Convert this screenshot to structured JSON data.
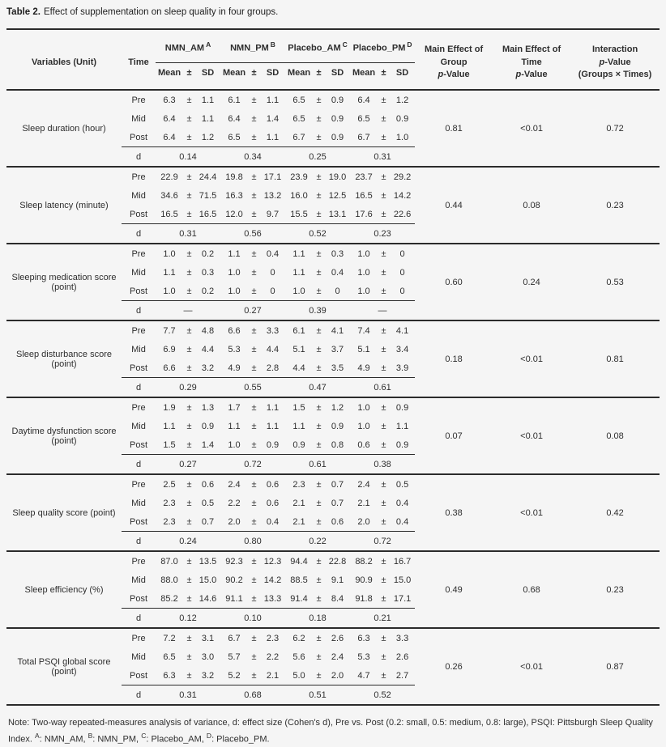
{
  "title": {
    "label": "Table 2.",
    "text": "Effect of supplementation on sleep quality in four groups."
  },
  "table": {
    "header": {
      "variables": "Variables (Unit)",
      "time": "Time",
      "groups": [
        {
          "name": "NMN_AM",
          "sup": "A"
        },
        {
          "name": "NMN_PM",
          "sup": "B"
        },
        {
          "name": "Placebo_AM",
          "sup": "C"
        },
        {
          "name": "Placebo_PM",
          "sup": "D"
        }
      ],
      "stat_cols": [
        "Mean",
        "±",
        "SD"
      ],
      "p_group_line1": "Main Effect of Group",
      "p_time_line1": "Main Effect of Time",
      "interaction_line1": "Interaction",
      "interaction_line3": "(Groups × Times)",
      "p_italic": "p",
      "p_suffix": "-Value"
    },
    "pm": "±",
    "d_label": "d",
    "blocks": [
      {
        "variable": "Sleep duration (hour)",
        "rows": [
          {
            "time": "Pre",
            "stats": [
              {
                "mean": "6.3",
                "sd": "1.1"
              },
              {
                "mean": "6.1",
                "sd": "1.1"
              },
              {
                "mean": "6.5",
                "sd": "0.9"
              },
              {
                "mean": "6.4",
                "sd": "1.2"
              }
            ]
          },
          {
            "time": "Mid",
            "stats": [
              {
                "mean": "6.4",
                "sd": "1.1"
              },
              {
                "mean": "6.4",
                "sd": "1.4"
              },
              {
                "mean": "6.5",
                "sd": "0.9"
              },
              {
                "mean": "6.5",
                "sd": "0.9"
              }
            ]
          },
          {
            "time": "Post",
            "stats": [
              {
                "mean": "6.4",
                "sd": "1.2"
              },
              {
                "mean": "6.5",
                "sd": "1.1"
              },
              {
                "mean": "6.7",
                "sd": "0.9"
              },
              {
                "mean": "6.7",
                "sd": "1.0"
              }
            ]
          }
        ],
        "d": [
          "0.14",
          "0.34",
          "0.25",
          "0.31"
        ],
        "p_group": "0.81",
        "p_time": "<0.01",
        "p_interaction": "0.72"
      },
      {
        "variable": "Sleep latency (minute)",
        "rows": [
          {
            "time": "Pre",
            "stats": [
              {
                "mean": "22.9",
                "sd": "24.4"
              },
              {
                "mean": "19.8",
                "sd": "17.1"
              },
              {
                "mean": "23.9",
                "sd": "19.0"
              },
              {
                "mean": "23.7",
                "sd": "29.2"
              }
            ]
          },
          {
            "time": "Mid",
            "stats": [
              {
                "mean": "34.6",
                "sd": "71.5"
              },
              {
                "mean": "16.3",
                "sd": "13.2"
              },
              {
                "mean": "16.0",
                "sd": "12.5"
              },
              {
                "mean": "16.5",
                "sd": "14.2"
              }
            ]
          },
          {
            "time": "Post",
            "stats": [
              {
                "mean": "16.5",
                "sd": "16.5"
              },
              {
                "mean": "12.0",
                "sd": "9.7"
              },
              {
                "mean": "15.5",
                "sd": "13.1"
              },
              {
                "mean": "17.6",
                "sd": "22.6"
              }
            ]
          }
        ],
        "d": [
          "0.31",
          "0.56",
          "0.52",
          "0.23"
        ],
        "p_group": "0.44",
        "p_time": "0.08",
        "p_interaction": "0.23"
      },
      {
        "variable": "Sleeping medication score (point)",
        "rows": [
          {
            "time": "Pre",
            "stats": [
              {
                "mean": "1.0",
                "sd": "0.2"
              },
              {
                "mean": "1.1",
                "sd": "0.4"
              },
              {
                "mean": "1.1",
                "sd": "0.3"
              },
              {
                "mean": "1.0",
                "sd": "0"
              }
            ]
          },
          {
            "time": "Mid",
            "stats": [
              {
                "mean": "1.1",
                "sd": "0.3"
              },
              {
                "mean": "1.0",
                "sd": "0"
              },
              {
                "mean": "1.1",
                "sd": "0.4"
              },
              {
                "mean": "1.0",
                "sd": "0"
              }
            ]
          },
          {
            "time": "Post",
            "stats": [
              {
                "mean": "1.0",
                "sd": "0.2"
              },
              {
                "mean": "1.0",
                "sd": "0"
              },
              {
                "mean": "1.0",
                "sd": "0"
              },
              {
                "mean": "1.0",
                "sd": "0"
              }
            ]
          }
        ],
        "d": [
          "—",
          "0.27",
          "0.39",
          "—"
        ],
        "p_group": "0.60",
        "p_time": "0.24",
        "p_interaction": "0.53"
      },
      {
        "variable": "Sleep disturbance score (point)",
        "rows": [
          {
            "time": "Pre",
            "stats": [
              {
                "mean": "7.7",
                "sd": "4.8"
              },
              {
                "mean": "6.6",
                "sd": "3.3"
              },
              {
                "mean": "6.1",
                "sd": "4.1"
              },
              {
                "mean": "7.4",
                "sd": "4.1"
              }
            ]
          },
          {
            "time": "Mid",
            "stats": [
              {
                "mean": "6.9",
                "sd": "4.4"
              },
              {
                "mean": "5.3",
                "sd": "4.4"
              },
              {
                "mean": "5.1",
                "sd": "3.7"
              },
              {
                "mean": "5.1",
                "sd": "3.4"
              }
            ]
          },
          {
            "time": "Post",
            "stats": [
              {
                "mean": "6.6",
                "sd": "3.2"
              },
              {
                "mean": "4.9",
                "sd": "2.8"
              },
              {
                "mean": "4.4",
                "sd": "3.5"
              },
              {
                "mean": "4.9",
                "sd": "3.9"
              }
            ]
          }
        ],
        "d": [
          "0.29",
          "0.55",
          "0.47",
          "0.61"
        ],
        "p_group": "0.18",
        "p_time": "<0.01",
        "p_interaction": "0.81"
      },
      {
        "variable": "Daytime dysfunction score (point)",
        "rows": [
          {
            "time": "Pre",
            "stats": [
              {
                "mean": "1.9",
                "sd": "1.3"
              },
              {
                "mean": "1.7",
                "sd": "1.1"
              },
              {
                "mean": "1.5",
                "sd": "1.2"
              },
              {
                "mean": "1.0",
                "sd": "0.9"
              }
            ]
          },
          {
            "time": "Mid",
            "stats": [
              {
                "mean": "1.1",
                "sd": "0.9"
              },
              {
                "mean": "1.1",
                "sd": "1.1"
              },
              {
                "mean": "1.1",
                "sd": "0.9"
              },
              {
                "mean": "1.0",
                "sd": "1.1"
              }
            ]
          },
          {
            "time": "Post",
            "stats": [
              {
                "mean": "1.5",
                "sd": "1.4"
              },
              {
                "mean": "1.0",
                "sd": "0.9"
              },
              {
                "mean": "0.9",
                "sd": "0.8"
              },
              {
                "mean": "0.6",
                "sd": "0.9"
              }
            ]
          }
        ],
        "d": [
          "0.27",
          "0.72",
          "0.61",
          "0.38"
        ],
        "p_group": "0.07",
        "p_time": "<0.01",
        "p_interaction": "0.08"
      },
      {
        "variable": "Sleep quality score (point)",
        "rows": [
          {
            "time": "Pre",
            "stats": [
              {
                "mean": "2.5",
                "sd": "0.6"
              },
              {
                "mean": "2.4",
                "sd": "0.6"
              },
              {
                "mean": "2.3",
                "sd": "0.7"
              },
              {
                "mean": "2.4",
                "sd": "0.5"
              }
            ]
          },
          {
            "time": "Mid",
            "stats": [
              {
                "mean": "2.3",
                "sd": "0.5"
              },
              {
                "mean": "2.2",
                "sd": "0.6"
              },
              {
                "mean": "2.1",
                "sd": "0.7"
              },
              {
                "mean": "2.1",
                "sd": "0.4"
              }
            ]
          },
          {
            "time": "Post",
            "stats": [
              {
                "mean": "2.3",
                "sd": "0.7"
              },
              {
                "mean": "2.0",
                "sd": "0.4"
              },
              {
                "mean": "2.1",
                "sd": "0.6"
              },
              {
                "mean": "2.0",
                "sd": "0.4"
              }
            ]
          }
        ],
        "d": [
          "0.24",
          "0.80",
          "0.22",
          "0.72"
        ],
        "p_group": "0.38",
        "p_time": "<0.01",
        "p_interaction": "0.42"
      },
      {
        "variable": "Sleep efficiency (%)",
        "rows": [
          {
            "time": "Pre",
            "stats": [
              {
                "mean": "87.0",
                "sd": "13.5"
              },
              {
                "mean": "92.3",
                "sd": "12.3"
              },
              {
                "mean": "94.4",
                "sd": "22.8"
              },
              {
                "mean": "88.2",
                "sd": "16.7"
              }
            ]
          },
          {
            "time": "Mid",
            "stats": [
              {
                "mean": "88.0",
                "sd": "15.0"
              },
              {
                "mean": "90.2",
                "sd": "14.2"
              },
              {
                "mean": "88.5",
                "sd": "9.1"
              },
              {
                "mean": "90.9",
                "sd": "15.0"
              }
            ]
          },
          {
            "time": "Post",
            "stats": [
              {
                "mean": "85.2",
                "sd": "14.6"
              },
              {
                "mean": "91.1",
                "sd": "13.3"
              },
              {
                "mean": "91.4",
                "sd": "8.4"
              },
              {
                "mean": "91.8",
                "sd": "17.1"
              }
            ]
          }
        ],
        "d": [
          "0.12",
          "0.10",
          "0.18",
          "0.21"
        ],
        "p_group": "0.49",
        "p_time": "0.68",
        "p_interaction": "0.23"
      },
      {
        "variable": "Total PSQI global score (point)",
        "rows": [
          {
            "time": "Pre",
            "stats": [
              {
                "mean": "7.2",
                "sd": "3.1"
              },
              {
                "mean": "6.7",
                "sd": "2.3"
              },
              {
                "mean": "6.2",
                "sd": "2.6"
              },
              {
                "mean": "6.3",
                "sd": "3.3"
              }
            ]
          },
          {
            "time": "Mid",
            "stats": [
              {
                "mean": "6.5",
                "sd": "3.0"
              },
              {
                "mean": "5.7",
                "sd": "2.2"
              },
              {
                "mean": "5.6",
                "sd": "2.4"
              },
              {
                "mean": "5.3",
                "sd": "2.6"
              }
            ]
          },
          {
            "time": "Post",
            "stats": [
              {
                "mean": "6.3",
                "sd": "3.2"
              },
              {
                "mean": "5.2",
                "sd": "2.1"
              },
              {
                "mean": "5.0",
                "sd": "2.0"
              },
              {
                "mean": "4.7",
                "sd": "2.7"
              }
            ]
          }
        ],
        "d": [
          "0.31",
          "0.68",
          "0.51",
          "0.52"
        ],
        "p_group": "0.26",
        "p_time": "<0.01",
        "p_interaction": "0.87"
      }
    ]
  },
  "note": {
    "lead": "Note: Two-way repeated-measures analysis of variance, d: effect size (Cohen's d), Pre vs. Post (0.2: small, 0.5: medium, 0.8: large), PSQI: Pittsburgh Sleep Quality Index. ",
    "defs": [
      {
        "sup": "A",
        "text": ": NMN_AM, "
      },
      {
        "sup": "B",
        "text": ": NMN_PM, "
      },
      {
        "sup": "C",
        "text": ": Placebo_AM, "
      },
      {
        "sup": "D",
        "text": ": Placebo_PM."
      }
    ]
  },
  "colors": {
    "background": "#f5f5f5",
    "text": "#2e2e2e",
    "rule": "#2b2b2b"
  }
}
